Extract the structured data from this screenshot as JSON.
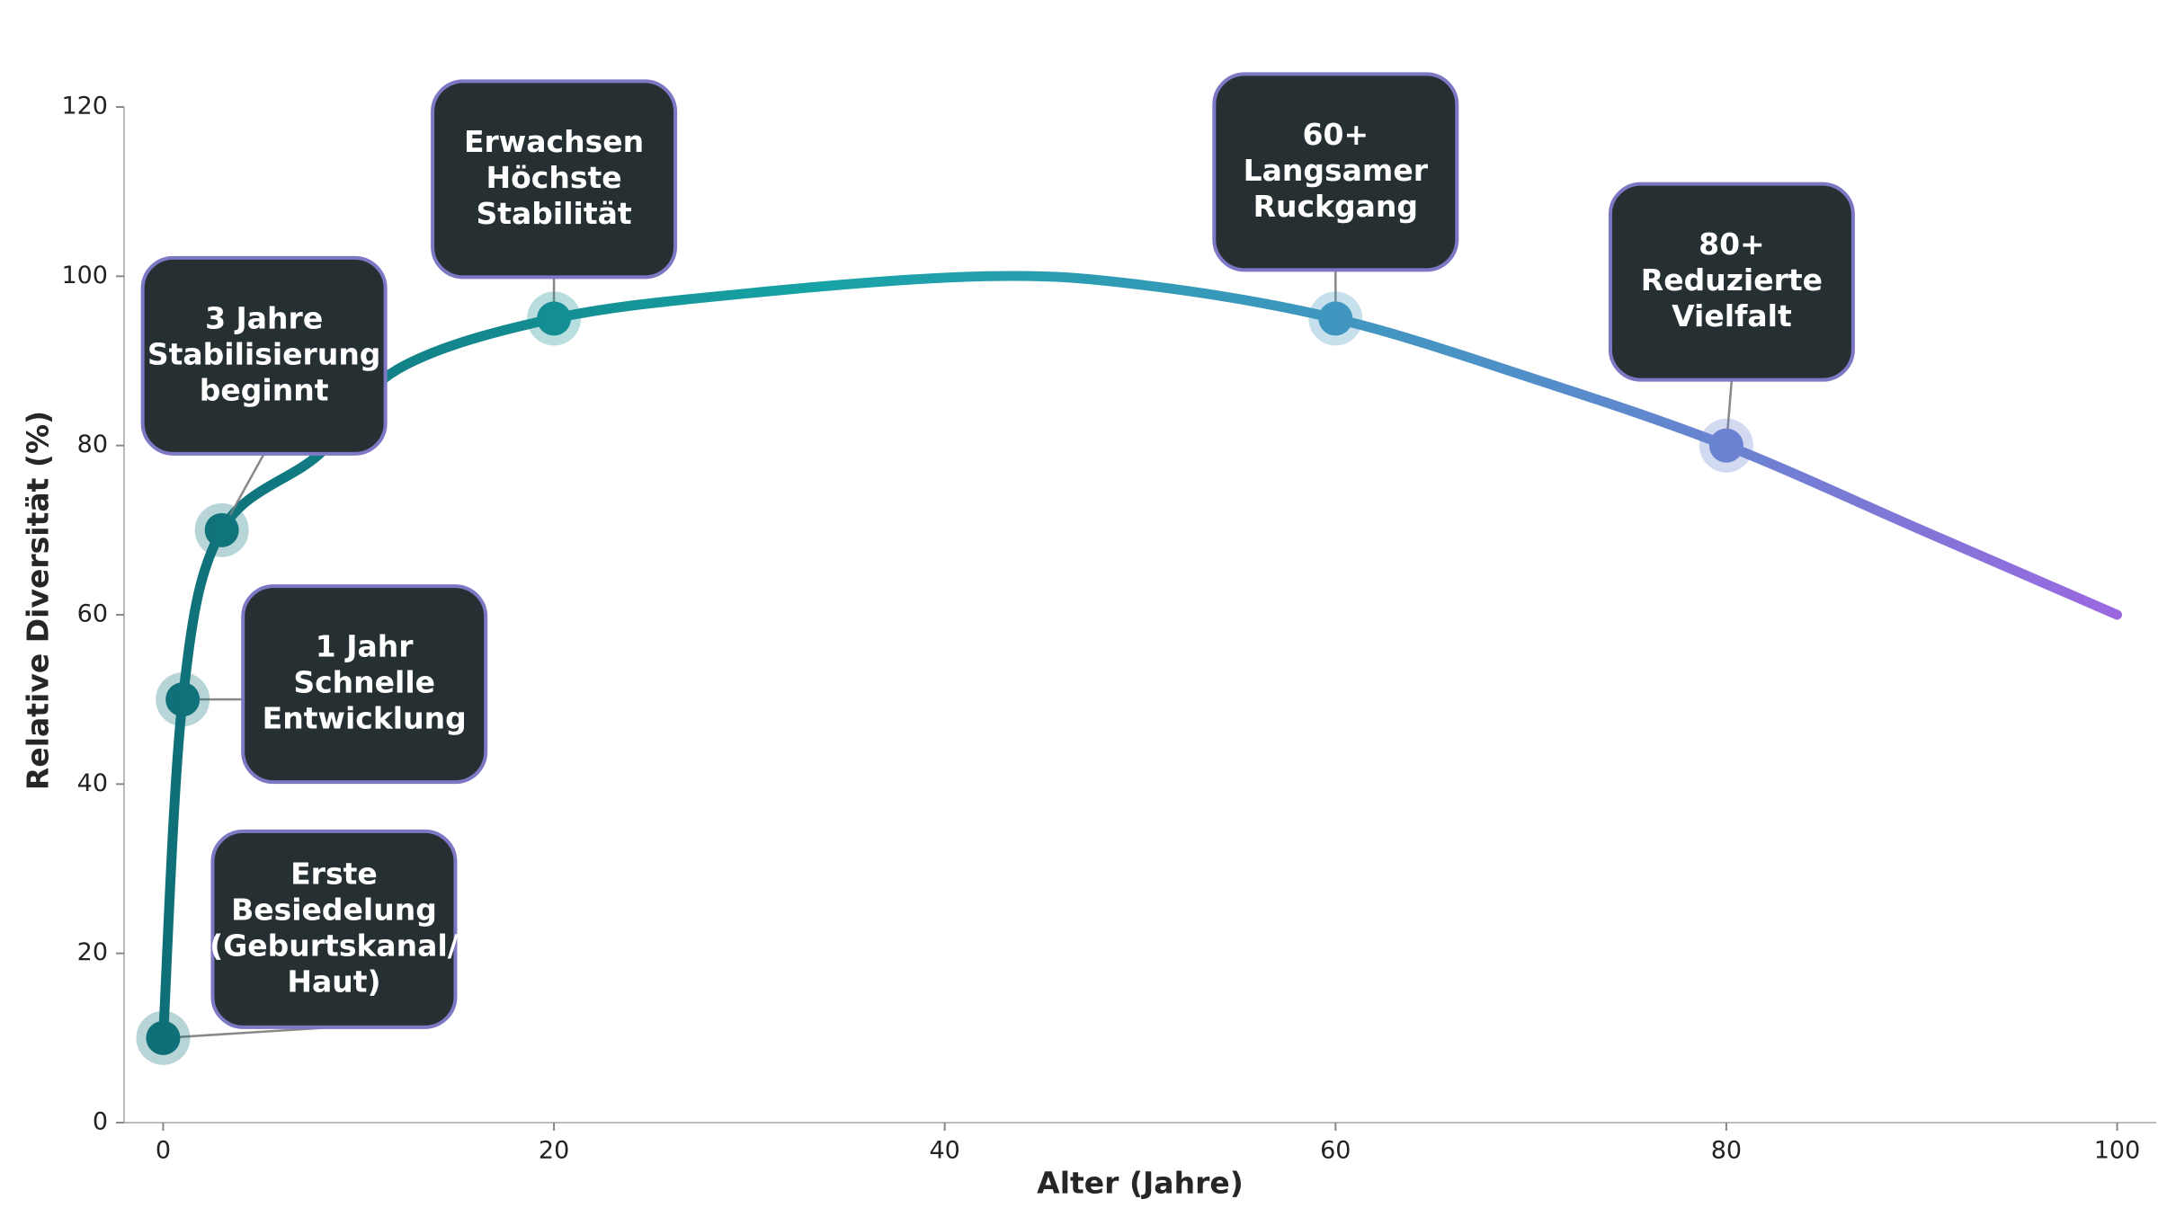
{
  "chart_data": {
    "type": "line",
    "xlabel": "Alter (Jahre)",
    "ylabel": "Relative Diversität (%)",
    "x": [
      0,
      1,
      3,
      8,
      12,
      20,
      30,
      42,
      50,
      60,
      70,
      80,
      90,
      100
    ],
    "series": [
      {
        "values": [
          10,
          50,
          70,
          79,
          89,
          95,
          98,
          100,
          99,
          95,
          88,
          80,
          70,
          60
        ]
      }
    ],
    "gradient": [
      "#0f6f78",
      "#17a3a5",
      "#4a93c6",
      "#9b68e0"
    ],
    "xlim": [
      -2,
      102
    ],
    "xticks": [
      0,
      20,
      40,
      60,
      80,
      100
    ],
    "ylim": [
      0,
      120
    ],
    "yticks": [
      0,
      20,
      40,
      60,
      80,
      100,
      120
    ],
    "annotations": [
      {
        "x": 0,
        "y": 10,
        "text": [
          "Erste",
          "Besiedelung",
          "(Geburtskanal/",
          "Haut)"
        ]
      },
      {
        "x": 1,
        "y": 50,
        "text": [
          "1 Jahr",
          "Schnelle",
          "Entwicklung"
        ]
      },
      {
        "x": 3,
        "y": 70,
        "text": [
          "3 Jahre",
          "Stabilisierung",
          "beginnt"
        ]
      },
      {
        "x": 20,
        "y": 95,
        "text": [
          "Erwachsen",
          "Höchste",
          "Stabilität"
        ]
      },
      {
        "x": 60,
        "y": 95,
        "text": [
          "60+",
          "Langsamer",
          "Ruckgang"
        ]
      },
      {
        "x": 80,
        "y": 80,
        "text": [
          "80+",
          "Reduzierte",
          "Vielfalt"
        ]
      }
    ]
  }
}
